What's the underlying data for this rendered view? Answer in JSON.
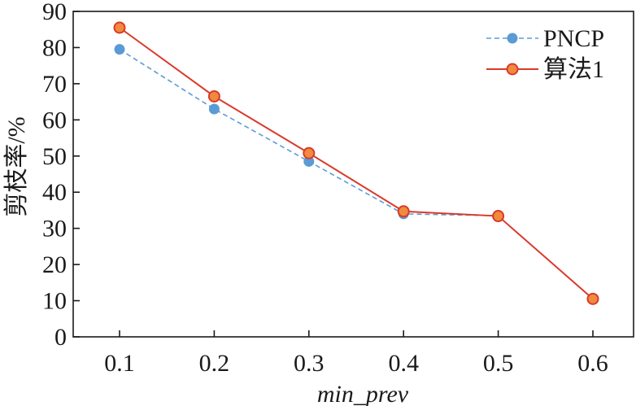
{
  "chart_data": {
    "type": "line",
    "categories": [
      "0.1",
      "0.2",
      "0.3",
      "0.4",
      "0.5",
      "0.6"
    ],
    "series": [
      {
        "name": "PNCP",
        "values": [
          79.5,
          63,
          48.5,
          34,
          33.5,
          null
        ],
        "color": "#5b9bd5",
        "line_style": "dashed"
      },
      {
        "name": "算法1",
        "values": [
          85.5,
          66.5,
          50.8,
          34.7,
          33.4,
          10.5
        ],
        "color": "#d93a2b",
        "line_style": "solid"
      }
    ],
    "xlabel": "min_prev",
    "ylabel": "剪枝率/%",
    "ylim": [
      0,
      90
    ],
    "yticks": [
      "0",
      "10",
      "20",
      "30",
      "40",
      "50",
      "60",
      "70",
      "80",
      "90"
    ],
    "grid": false,
    "legend_position": "top-right"
  }
}
